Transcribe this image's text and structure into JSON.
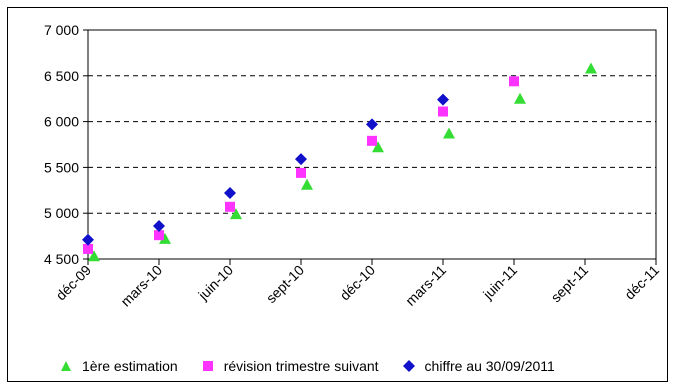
{
  "chart_data": {
    "type": "scatter",
    "title": "",
    "xlabel": "",
    "ylabel": "",
    "ylim": [
      4500,
      7000
    ],
    "x_ticks": [
      "déc-09",
      "mars-10",
      "juin-10",
      "sept-10",
      "déc-10",
      "mars-11",
      "juin-11",
      "sept-11",
      "déc-11"
    ],
    "y_ticks": [
      {
        "value": 4500,
        "label": "4 500"
      },
      {
        "value": 5000,
        "label": "5 000"
      },
      {
        "value": 5500,
        "label": "5 500"
      },
      {
        "value": 6000,
        "label": "6 000"
      },
      {
        "value": 6500,
        "label": "6 500"
      },
      {
        "value": 7000,
        "label": "7 000"
      }
    ],
    "grid": {
      "horizontal": true,
      "style": "dashed"
    },
    "legend_position": "bottom",
    "series": [
      {
        "name": "1ère estimation",
        "marker": "triangle",
        "color": "#33dd33",
        "points": [
          {
            "x": "déc-09",
            "y": 4530
          },
          {
            "x": "mars-10",
            "y": 4720
          },
          {
            "x": "juin-10",
            "y": 4990
          },
          {
            "x": "sept-10",
            "y": 5310
          },
          {
            "x": "déc-10",
            "y": 5720
          },
          {
            "x": "mars-11",
            "y": 5870
          },
          {
            "x": "juin-11",
            "y": 6250
          },
          {
            "x": "sept-11",
            "y": 6580
          }
        ]
      },
      {
        "name": "révision trimestre suivant",
        "marker": "square",
        "color": "#ff33ff",
        "points": [
          {
            "x": "déc-09",
            "y": 4610
          },
          {
            "x": "mars-10",
            "y": 4760
          },
          {
            "x": "juin-10",
            "y": 5070
          },
          {
            "x": "sept-10",
            "y": 5440
          },
          {
            "x": "déc-10",
            "y": 5790
          },
          {
            "x": "mars-11",
            "y": 6110
          },
          {
            "x": "juin-11",
            "y": 6440
          }
        ]
      },
      {
        "name": "chiffre au 30/09/2011",
        "marker": "diamond",
        "color": "#1111cc",
        "points": [
          {
            "x": "déc-09",
            "y": 4710
          },
          {
            "x": "mars-10",
            "y": 4860
          },
          {
            "x": "juin-10",
            "y": 5220
          },
          {
            "x": "sept-10",
            "y": 5590
          },
          {
            "x": "déc-10",
            "y": 5970
          },
          {
            "x": "mars-11",
            "y": 6240
          }
        ]
      }
    ]
  }
}
